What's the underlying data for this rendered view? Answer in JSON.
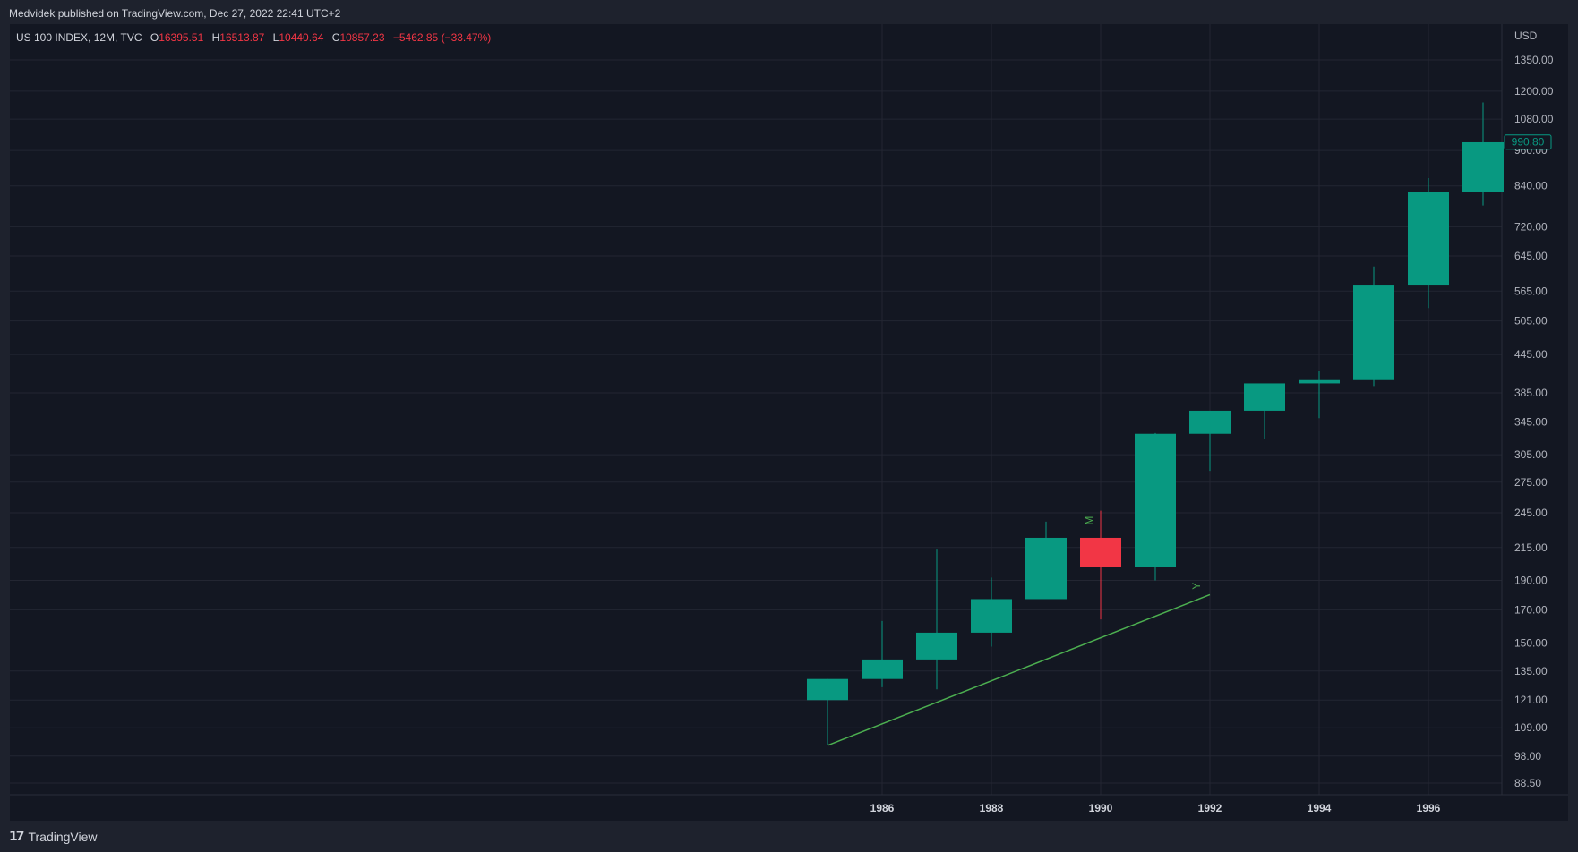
{
  "header": {
    "publish_line": "Medvidek published on TradingView.com, Dec 27, 2022 22:41 UTC+2"
  },
  "legend": {
    "symbol": "US 100 INDEX, 12M, TVC",
    "o_label": "O",
    "o_value": "16395.51",
    "h_label": "H",
    "h_value": "16513.87",
    "l_label": "L",
    "l_value": "10440.64",
    "c_label": "C",
    "c_value": "10857.23",
    "change": "−5462.85 (−33.47%)"
  },
  "footer": {
    "brand": "TradingView"
  },
  "colors": {
    "background": "#131722",
    "frame": "#1e222d",
    "grid": "#232632",
    "up": "#089981",
    "down": "#f23645",
    "trendline": "#4caf50",
    "legend_value": "#f23645",
    "price_tag": "#089981"
  },
  "chart_data": {
    "type": "candlestick",
    "scale": "log",
    "currency_label": "USD",
    "y_ticks": [
      "1350.00",
      "1200.00",
      "1080.00",
      "960.00",
      "840.00",
      "720.00",
      "645.00",
      "565.00",
      "505.00",
      "445.00",
      "385.00",
      "345.00",
      "305.00",
      "275.00",
      "245.00",
      "215.00",
      "190.00",
      "170.00",
      "150.00",
      "135.00",
      "121.00",
      "109.00",
      "98.00",
      "88.50"
    ],
    "x_ticks": [
      "1986",
      "1988",
      "1990",
      "1992",
      "1994",
      "1996"
    ],
    "last_price_tag": "990.80",
    "candles": [
      {
        "year": 1985,
        "open": 121,
        "high": 131,
        "low": 102,
        "close": 131
      },
      {
        "year": 1986,
        "open": 131,
        "high": 163,
        "low": 127,
        "close": 141
      },
      {
        "year": 1987,
        "open": 141,
        "high": 214,
        "low": 126,
        "close": 156
      },
      {
        "year": 1988,
        "open": 156,
        "high": 192,
        "low": 148,
        "close": 177
      },
      {
        "year": 1989,
        "open": 177,
        "high": 237,
        "low": 178,
        "close": 223
      },
      {
        "year": 1990,
        "open": 223,
        "high": 247,
        "low": 164,
        "close": 200
      },
      {
        "year": 1991,
        "open": 200,
        "high": 331,
        "low": 190,
        "close": 330
      },
      {
        "year": 1992,
        "open": 330,
        "high": 360,
        "low": 287,
        "close": 360
      },
      {
        "year": 1993,
        "open": 360,
        "high": 399,
        "low": 324,
        "close": 399
      },
      {
        "year": 1994,
        "open": 399,
        "high": 418,
        "low": 350,
        "close": 404
      },
      {
        "year": 1995,
        "open": 404,
        "high": 620,
        "low": 395,
        "close": 577
      },
      {
        "year": 1996,
        "open": 577,
        "high": 865,
        "low": 530,
        "close": 822
      },
      {
        "year": 1997,
        "open": 822,
        "high": 1150,
        "low": 780,
        "close": 990
      }
    ],
    "annotations": [
      {
        "type": "trendline",
        "from": {
          "year": 1985,
          "value": 102
        },
        "to": {
          "year": 1992,
          "value": 180
        }
      },
      {
        "type": "text",
        "text": "M",
        "year": 1989.85,
        "value": 238
      },
      {
        "type": "text",
        "text": "Y",
        "year": 1991.82,
        "value": 186
      }
    ]
  }
}
